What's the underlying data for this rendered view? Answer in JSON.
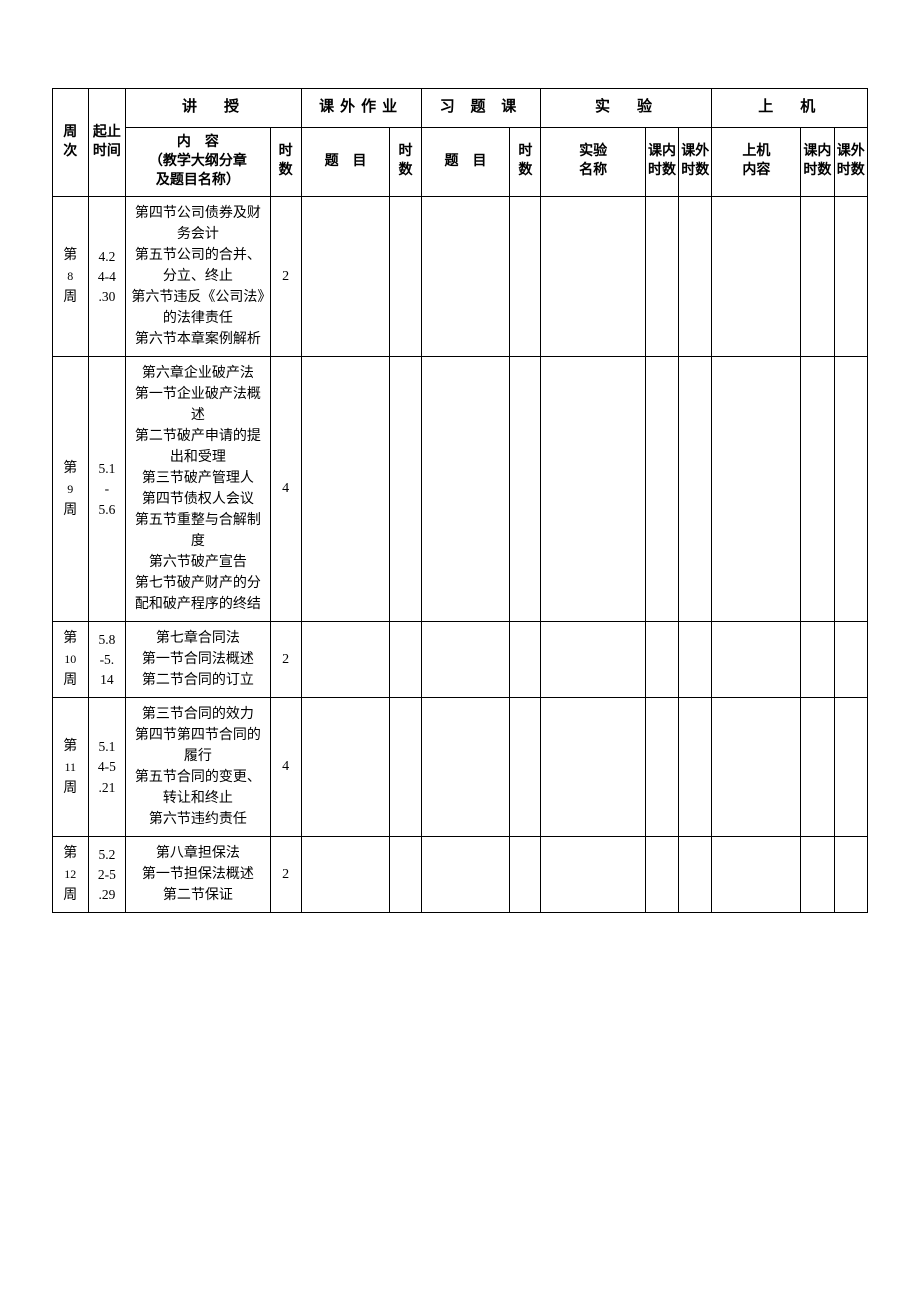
{
  "headers": {
    "week": "周\n次",
    "daterange": "起止时间",
    "lecture": "讲　授",
    "homework": "课外作业",
    "exercise": "习 题 课",
    "lab": "实　验",
    "pc": "上　机",
    "content": "内　容\n（教学大纲分章\n及题目名称）",
    "hours": "时数",
    "topic": "题　目",
    "labname": "实验\n名称",
    "in_hours": "课内时数",
    "out_hours": "课外时数",
    "pc_content": "上机\n内容"
  },
  "rows": [
    {
      "week_pre": "第",
      "week_num": "8",
      "week_suf": "周",
      "date": "4.2\n4-4\n.30",
      "content": "第四节公司债券及财务会计\n第五节公司的合并、分立、终止\n第六节违反《公司法》的法律责任\n第六节本章案例解析",
      "hours": "2"
    },
    {
      "week_pre": "第",
      "week_num": "9",
      "week_suf": "周",
      "date": "5.1\n-\n5.6",
      "content": "第六章企业破产法\n第一节企业破产法概述\n第二节破产申请的提出和受理\n第三节破产管理人\n第四节债权人会议\n第五节重整与合解制度\n第六节破产宣告\n第七节破产财产的分配和破产程序的终结",
      "hours": "4"
    },
    {
      "week_pre": "第",
      "week_num": "10",
      "week_suf": "周",
      "date": "5.8\n-5.\n14",
      "content": "第七章合同法\n第一节合同法概述\n第二节合同的订立",
      "hours": "2"
    },
    {
      "week_pre": "第",
      "week_num": "11",
      "week_suf": "周",
      "date": "5.1\n4-5\n.21",
      "content": "第三节合同的效力\n第四节第四节合同的履行\n第五节合同的变更、转让和终止\n第六节违约责任",
      "hours": "4"
    },
    {
      "week_pre": "第",
      "week_num": "12",
      "week_suf": "周",
      "date": "5.2\n2-5\n.29",
      "content": "第八章担保法\n第一节担保法概述\n第二节保证",
      "hours": "2"
    }
  ]
}
